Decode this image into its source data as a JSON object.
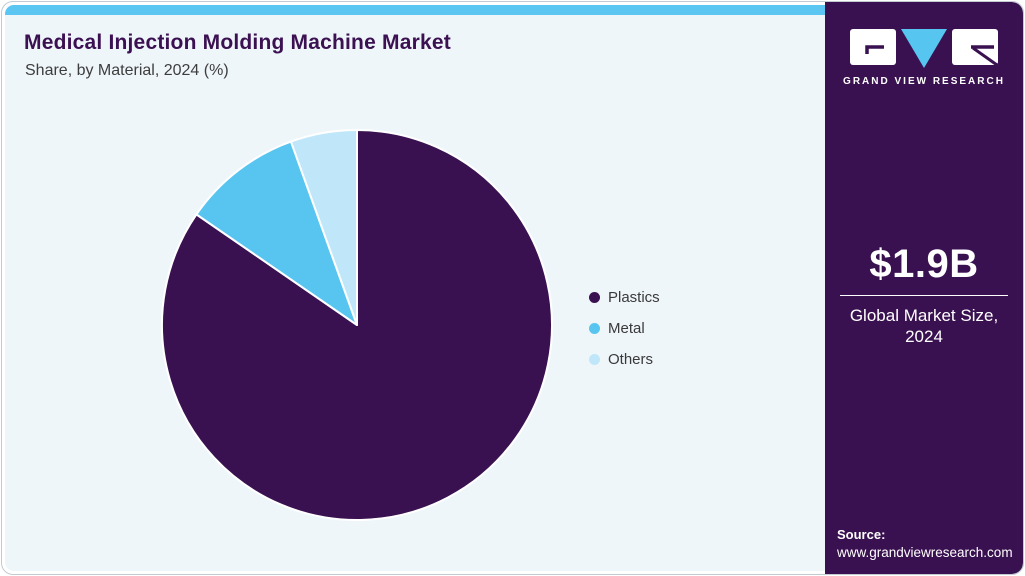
{
  "header": {
    "title": "Medical Injection Molding Machine Market",
    "subtitle": "Share, by Material, 2024 (%)"
  },
  "chart_data": {
    "type": "pie",
    "title": "Medical Injection Molding Machine Market Share, by Material, 2024 (%)",
    "categories": [
      "Plastics",
      "Metal",
      "Others"
    ],
    "values": [
      84.6,
      9.9,
      5.5
    ],
    "unit": "%",
    "colors": [
      "#3a1150",
      "#58c5f1",
      "#bfe7f9"
    ],
    "start_angle_deg": 0,
    "direction": "clockwise",
    "legend_position": "right",
    "slice_border_color": "#ffffff"
  },
  "legend": {
    "items": [
      {
        "label": "Plastics",
        "color": "#3a1150"
      },
      {
        "label": "Metal",
        "color": "#58c5f1"
      },
      {
        "label": "Others",
        "color": "#bfe7f9"
      }
    ]
  },
  "sidebar": {
    "logo_brand": "GRAND VIEW RESEARCH",
    "market_size": {
      "value": "$1.9B",
      "label_line1": "Global Market Size,",
      "label_line2": "2024"
    },
    "source": {
      "label": "Source:",
      "url": "www.grandviewresearch.com"
    }
  },
  "theme": {
    "accent_strip": "#5cc6f3",
    "panel_background": "#eff6fa",
    "sidebar_background": "#3a1150",
    "title_color": "#3b1152",
    "text_color": "#3d3d3d",
    "logo_triangle_color": "#56c5f0"
  }
}
